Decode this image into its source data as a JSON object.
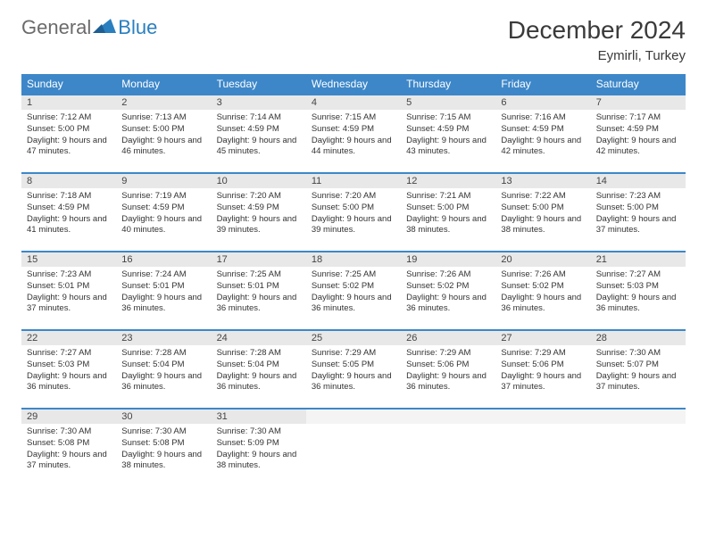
{
  "logo": {
    "general": "General",
    "blue": "Blue"
  },
  "title": "December 2024",
  "location": "Eymirli, Turkey",
  "colors": {
    "header_bg": "#3d87c9",
    "header_text": "#ffffff",
    "daynum_bg": "#e8e8e8",
    "border": "#3d87c9",
    "text": "#333333",
    "logo_gray": "#6b6b6b",
    "logo_blue": "#2a7fbf",
    "background": "#ffffff"
  },
  "typography": {
    "month_title_size": 28,
    "location_size": 15,
    "weekday_size": 12,
    "daynum_size": 11,
    "daytext_size": 9.5
  },
  "weekdays": [
    "Sunday",
    "Monday",
    "Tuesday",
    "Wednesday",
    "Thursday",
    "Friday",
    "Saturday"
  ],
  "days": [
    {
      "n": "1",
      "sr": "7:12 AM",
      "ss": "5:00 PM",
      "dl": "9 hours and 47 minutes."
    },
    {
      "n": "2",
      "sr": "7:13 AM",
      "ss": "5:00 PM",
      "dl": "9 hours and 46 minutes."
    },
    {
      "n": "3",
      "sr": "7:14 AM",
      "ss": "4:59 PM",
      "dl": "9 hours and 45 minutes."
    },
    {
      "n": "4",
      "sr": "7:15 AM",
      "ss": "4:59 PM",
      "dl": "9 hours and 44 minutes."
    },
    {
      "n": "5",
      "sr": "7:15 AM",
      "ss": "4:59 PM",
      "dl": "9 hours and 43 minutes."
    },
    {
      "n": "6",
      "sr": "7:16 AM",
      "ss": "4:59 PM",
      "dl": "9 hours and 42 minutes."
    },
    {
      "n": "7",
      "sr": "7:17 AM",
      "ss": "4:59 PM",
      "dl": "9 hours and 42 minutes."
    },
    {
      "n": "8",
      "sr": "7:18 AM",
      "ss": "4:59 PM",
      "dl": "9 hours and 41 minutes."
    },
    {
      "n": "9",
      "sr": "7:19 AM",
      "ss": "4:59 PM",
      "dl": "9 hours and 40 minutes."
    },
    {
      "n": "10",
      "sr": "7:20 AM",
      "ss": "4:59 PM",
      "dl": "9 hours and 39 minutes."
    },
    {
      "n": "11",
      "sr": "7:20 AM",
      "ss": "5:00 PM",
      "dl": "9 hours and 39 minutes."
    },
    {
      "n": "12",
      "sr": "7:21 AM",
      "ss": "5:00 PM",
      "dl": "9 hours and 38 minutes."
    },
    {
      "n": "13",
      "sr": "7:22 AM",
      "ss": "5:00 PM",
      "dl": "9 hours and 38 minutes."
    },
    {
      "n": "14",
      "sr": "7:23 AM",
      "ss": "5:00 PM",
      "dl": "9 hours and 37 minutes."
    },
    {
      "n": "15",
      "sr": "7:23 AM",
      "ss": "5:01 PM",
      "dl": "9 hours and 37 minutes."
    },
    {
      "n": "16",
      "sr": "7:24 AM",
      "ss": "5:01 PM",
      "dl": "9 hours and 36 minutes."
    },
    {
      "n": "17",
      "sr": "7:25 AM",
      "ss": "5:01 PM",
      "dl": "9 hours and 36 minutes."
    },
    {
      "n": "18",
      "sr": "7:25 AM",
      "ss": "5:02 PM",
      "dl": "9 hours and 36 minutes."
    },
    {
      "n": "19",
      "sr": "7:26 AM",
      "ss": "5:02 PM",
      "dl": "9 hours and 36 minutes."
    },
    {
      "n": "20",
      "sr": "7:26 AM",
      "ss": "5:02 PM",
      "dl": "9 hours and 36 minutes."
    },
    {
      "n": "21",
      "sr": "7:27 AM",
      "ss": "5:03 PM",
      "dl": "9 hours and 36 minutes."
    },
    {
      "n": "22",
      "sr": "7:27 AM",
      "ss": "5:03 PM",
      "dl": "9 hours and 36 minutes."
    },
    {
      "n": "23",
      "sr": "7:28 AM",
      "ss": "5:04 PM",
      "dl": "9 hours and 36 minutes."
    },
    {
      "n": "24",
      "sr": "7:28 AM",
      "ss": "5:04 PM",
      "dl": "9 hours and 36 minutes."
    },
    {
      "n": "25",
      "sr": "7:29 AM",
      "ss": "5:05 PM",
      "dl": "9 hours and 36 minutes."
    },
    {
      "n": "26",
      "sr": "7:29 AM",
      "ss": "5:06 PM",
      "dl": "9 hours and 36 minutes."
    },
    {
      "n": "27",
      "sr": "7:29 AM",
      "ss": "5:06 PM",
      "dl": "9 hours and 37 minutes."
    },
    {
      "n": "28",
      "sr": "7:30 AM",
      "ss": "5:07 PM",
      "dl": "9 hours and 37 minutes."
    },
    {
      "n": "29",
      "sr": "7:30 AM",
      "ss": "5:08 PM",
      "dl": "9 hours and 37 minutes."
    },
    {
      "n": "30",
      "sr": "7:30 AM",
      "ss": "5:08 PM",
      "dl": "9 hours and 38 minutes."
    },
    {
      "n": "31",
      "sr": "7:30 AM",
      "ss": "5:09 PM",
      "dl": "9 hours and 38 minutes."
    }
  ],
  "labels": {
    "sunrise": "Sunrise:",
    "sunset": "Sunset:",
    "daylight": "Daylight:"
  }
}
